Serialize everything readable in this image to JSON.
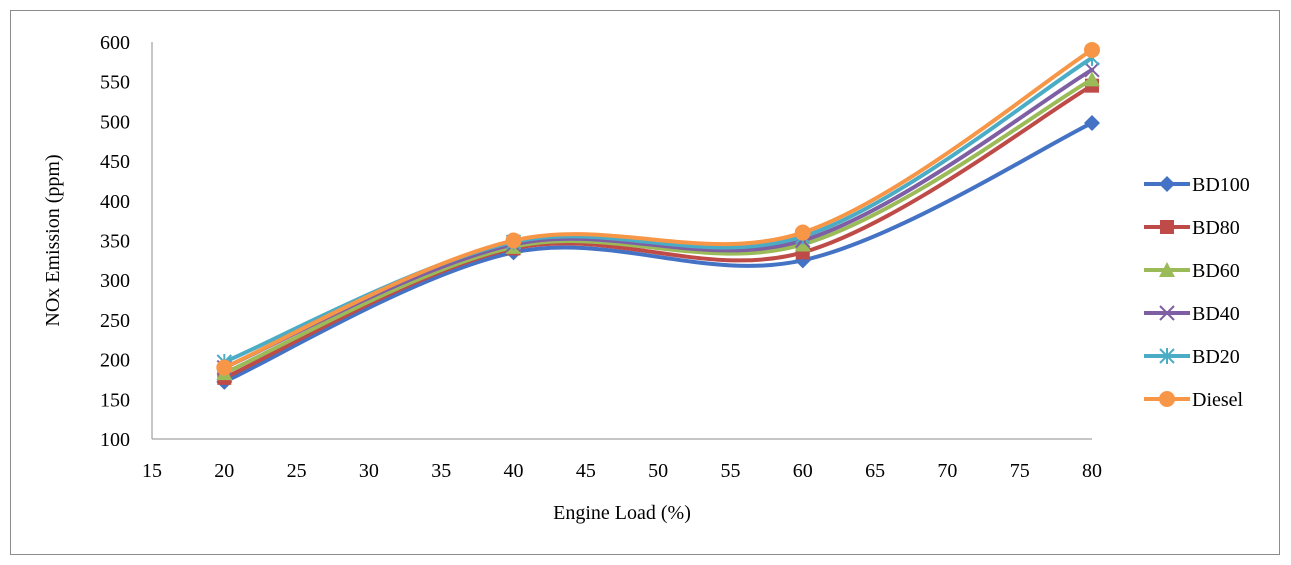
{
  "chart_data": {
    "type": "line",
    "title": "",
    "xlabel": "Engine Load (%)",
    "ylabel": "NOx Emission (ppm)",
    "xlim": [
      15,
      80
    ],
    "ylim": [
      100,
      600
    ],
    "xticks": [
      15,
      20,
      25,
      30,
      35,
      40,
      45,
      50,
      55,
      60,
      65,
      70,
      75,
      80
    ],
    "yticks": [
      100,
      150,
      200,
      250,
      300,
      350,
      400,
      450,
      500,
      550,
      600
    ],
    "x": [
      20,
      40,
      60,
      80
    ],
    "smooth": true,
    "grid": false,
    "legend_position": "right",
    "series": [
      {
        "name": "BD100",
        "values": [
          172,
          335,
          325,
          498
        ],
        "color": "#4472C4",
        "marker": "diamond"
      },
      {
        "name": "BD80",
        "values": [
          177,
          340,
          335,
          545
        ],
        "color": "#BE4B48",
        "marker": "square"
      },
      {
        "name": "BD60",
        "values": [
          183,
          342,
          345,
          553
        ],
        "color": "#9BBB59",
        "marker": "triangle"
      },
      {
        "name": "BD40",
        "values": [
          190,
          345,
          350,
          565
        ],
        "color": "#7F5FA4",
        "marker": "x"
      },
      {
        "name": "BD20",
        "values": [
          197,
          348,
          355,
          580
        ],
        "color": "#4BACC6",
        "marker": "star"
      },
      {
        "name": "Diesel",
        "values": [
          190,
          350,
          360,
          590
        ],
        "color": "#F79646",
        "marker": "circle"
      }
    ]
  }
}
